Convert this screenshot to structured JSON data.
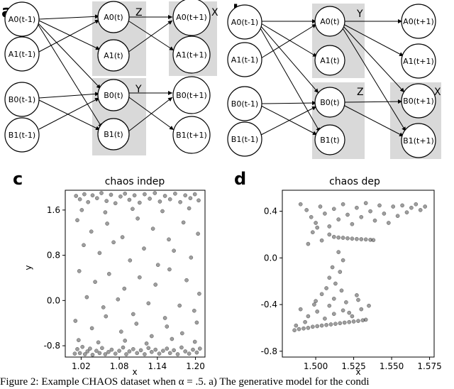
{
  "panels": {
    "a": {
      "letter": "a",
      "group_labels": [
        "Z",
        "X",
        "Y"
      ],
      "nodes": [
        "A0(t-1)",
        "A1(t-1)",
        "B0(t-1)",
        "B1(t-1)",
        "A0(t)",
        "A1(t)",
        "B0(t)",
        "B1(t)",
        "A0(t+1)",
        "A1(t+1)",
        "B0(t+1)",
        "B1(t+1)"
      ]
    },
    "b": {
      "letter": "b",
      "group_labels": [
        "Y",
        "Z",
        "X"
      ],
      "nodes": [
        "A0(t-1)",
        "A1(t-1)",
        "B0(t-1)",
        "B1(t-1)",
        "A0(t)",
        "A1(t)",
        "B0(t)",
        "B1(t)",
        "A0(t+1)",
        "A1(t+1)",
        "B0(t+1)",
        "B1(t+1)"
      ]
    },
    "c": {
      "letter": "c"
    },
    "d": {
      "letter": "d"
    }
  },
  "chart_data": [
    {
      "type": "scatter",
      "title": "chaos indep",
      "xlabel": "x",
      "ylabel": "y",
      "xlim": [
        0.995,
        1.215
      ],
      "ylim": [
        -1.0,
        1.95
      ],
      "x_ticks": [
        "1.02",
        "1.08",
        "1.14",
        "1.20"
      ],
      "y_ticks": [
        "1.6",
        "0.8",
        "0.0",
        "-0.8"
      ],
      "points": [
        [
          1.01,
          -0.94
        ],
        [
          1.014,
          -0.86
        ],
        [
          1.018,
          -0.93
        ],
        [
          1.022,
          -0.82
        ],
        [
          1.026,
          -0.95
        ],
        [
          1.03,
          -0.9
        ],
        [
          1.034,
          -0.85
        ],
        [
          1.038,
          -0.96
        ],
        [
          1.044,
          -0.89
        ],
        [
          1.049,
          -0.93
        ],
        [
          1.053,
          -0.84
        ],
        [
          1.058,
          -0.95
        ],
        [
          1.063,
          -0.91
        ],
        [
          1.068,
          -0.87
        ],
        [
          1.074,
          -0.94
        ],
        [
          1.08,
          -0.89
        ],
        [
          1.086,
          -0.83
        ],
        [
          1.091,
          -0.95
        ],
        [
          1.096,
          -0.9
        ],
        [
          1.102,
          -0.86
        ],
        [
          1.108,
          -0.93
        ],
        [
          1.114,
          -0.88
        ],
        [
          1.12,
          -0.95
        ],
        [
          1.126,
          -0.84
        ],
        [
          1.131,
          -0.91
        ],
        [
          1.137,
          -0.87
        ],
        [
          1.143,
          -0.94
        ],
        [
          1.149,
          -0.89
        ],
        [
          1.155,
          -0.85
        ],
        [
          1.16,
          -0.93
        ],
        [
          1.166,
          -0.88
        ],
        [
          1.172,
          -0.95
        ],
        [
          1.178,
          -0.83
        ],
        [
          1.184,
          -0.9
        ],
        [
          1.19,
          -0.94
        ],
        [
          1.196,
          -0.87
        ],
        [
          1.202,
          -0.92
        ],
        [
          1.207,
          -0.85
        ],
        [
          1.016,
          -0.7
        ],
        [
          1.047,
          -0.74
        ],
        [
          1.089,
          -0.71
        ],
        [
          1.123,
          -0.76
        ],
        [
          1.163,
          -0.68
        ],
        [
          1.199,
          -0.73
        ],
        [
          1.012,
          1.85
        ],
        [
          1.018,
          1.79
        ],
        [
          1.025,
          1.88
        ],
        [
          1.031,
          1.74
        ],
        [
          1.038,
          1.86
        ],
        [
          1.045,
          1.81
        ],
        [
          1.052,
          1.9
        ],
        [
          1.06,
          1.76
        ],
        [
          1.067,
          1.87
        ],
        [
          1.074,
          1.72
        ],
        [
          1.082,
          1.84
        ],
        [
          1.089,
          1.89
        ],
        [
          1.096,
          1.78
        ],
        [
          1.104,
          1.86
        ],
        [
          1.112,
          1.73
        ],
        [
          1.12,
          1.88
        ],
        [
          1.128,
          1.8
        ],
        [
          1.136,
          1.9
        ],
        [
          1.144,
          1.75
        ],
        [
          1.152,
          1.85
        ],
        [
          1.16,
          1.79
        ],
        [
          1.168,
          1.89
        ],
        [
          1.176,
          1.74
        ],
        [
          1.184,
          1.86
        ],
        [
          1.192,
          1.81
        ],
        [
          1.199,
          1.88
        ],
        [
          1.205,
          1.77
        ],
        [
          1.021,
          1.6
        ],
        [
          1.058,
          1.56
        ],
        [
          1.101,
          1.62
        ],
        [
          1.148,
          1.58
        ],
        [
          1.19,
          1.63
        ],
        [
          1.014,
          1.42
        ],
        [
          1.036,
          1.22
        ],
        [
          1.061,
          1.36
        ],
        [
          1.085,
          1.12
        ],
        [
          1.109,
          1.45
        ],
        [
          1.133,
          1.27
        ],
        [
          1.158,
          1.08
        ],
        [
          1.181,
          1.38
        ],
        [
          1.204,
          1.18
        ],
        [
          1.024,
          0.98
        ],
        [
          1.049,
          0.84
        ],
        [
          1.071,
          1.03
        ],
        [
          1.097,
          0.71
        ],
        [
          1.119,
          0.92
        ],
        [
          1.141,
          0.63
        ],
        [
          1.166,
          0.88
        ],
        [
          1.193,
          0.76
        ],
        [
          1.017,
          0.52
        ],
        [
          1.042,
          0.33
        ],
        [
          1.064,
          0.47
        ],
        [
          1.088,
          0.21
        ],
        [
          1.112,
          0.41
        ],
        [
          1.137,
          0.28
        ],
        [
          1.159,
          0.55
        ],
        [
          1.186,
          0.36
        ],
        [
          1.206,
          0.12
        ],
        [
          1.029,
          0.06
        ],
        [
          1.055,
          -0.12
        ],
        [
          1.078,
          0.02
        ],
        [
          1.102,
          -0.24
        ],
        [
          1.126,
          -0.05
        ],
        [
          1.152,
          -0.31
        ],
        [
          1.175,
          -0.09
        ],
        [
          1.198,
          -0.18
        ],
        [
          1.011,
          -0.36
        ],
        [
          1.037,
          -0.49
        ],
        [
          1.059,
          -0.28
        ],
        [
          1.083,
          -0.55
        ],
        [
          1.107,
          -0.41
        ],
        [
          1.131,
          -0.63
        ],
        [
          1.155,
          -0.46
        ],
        [
          1.179,
          -0.58
        ],
        [
          1.202,
          -0.39
        ]
      ]
    },
    {
      "type": "scatter",
      "title": "chaos dep",
      "xlabel": "x",
      "ylabel": "",
      "xlim": [
        1.478,
        1.578
      ],
      "ylim": [
        -0.85,
        0.58
      ],
      "x_ticks": [
        "1.500",
        "1.525",
        "1.550",
        "1.575"
      ],
      "y_ticks": [
        "0.4",
        "0.0",
        "-0.4",
        "-0.8"
      ],
      "points": [
        [
          1.486,
          -0.62
        ],
        [
          1.489,
          -0.61
        ],
        [
          1.492,
          -0.605
        ],
        [
          1.495,
          -0.6
        ],
        [
          1.498,
          -0.59
        ],
        [
          1.501,
          -0.585
        ],
        [
          1.504,
          -0.58
        ],
        [
          1.507,
          -0.575
        ],
        [
          1.51,
          -0.57
        ],
        [
          1.513,
          -0.565
        ],
        [
          1.516,
          -0.56
        ],
        [
          1.519,
          -0.555
        ],
        [
          1.522,
          -0.55
        ],
        [
          1.525,
          -0.545
        ],
        [
          1.528,
          -0.54
        ],
        [
          1.531,
          -0.535
        ],
        [
          1.533,
          -0.53
        ],
        [
          1.512,
          0.18
        ],
        [
          1.515,
          0.175
        ],
        [
          1.518,
          0.172
        ],
        [
          1.521,
          0.168
        ],
        [
          1.524,
          0.165
        ],
        [
          1.527,
          0.162
        ],
        [
          1.53,
          0.16
        ],
        [
          1.533,
          0.158
        ],
        [
          1.536,
          0.155
        ],
        [
          1.538,
          0.153
        ],
        [
          1.49,
          0.46
        ],
        [
          1.494,
          0.41
        ],
        [
          1.497,
          0.35
        ],
        [
          1.5,
          0.3
        ],
        [
          1.503,
          0.44
        ],
        [
          1.506,
          0.38
        ],
        [
          1.509,
          0.27
        ],
        [
          1.512,
          0.42
        ],
        [
          1.515,
          0.33
        ],
        [
          1.518,
          0.46
        ],
        [
          1.521,
          0.37
        ],
        [
          1.524,
          0.29
        ],
        [
          1.527,
          0.43
        ],
        [
          1.53,
          0.35
        ],
        [
          1.533,
          0.47
        ],
        [
          1.536,
          0.4
        ],
        [
          1.539,
          0.32
        ],
        [
          1.542,
          0.45
        ],
        [
          1.545,
          0.38
        ],
        [
          1.548,
          0.3
        ],
        [
          1.551,
          0.44
        ],
        [
          1.554,
          0.36
        ],
        [
          1.557,
          0.45
        ],
        [
          1.56,
          0.39
        ],
        [
          1.563,
          0.43
        ],
        [
          1.566,
          0.46
        ],
        [
          1.569,
          0.41
        ],
        [
          1.572,
          0.44
        ],
        [
          1.498,
          0.22
        ],
        [
          1.504,
          0.15
        ],
        [
          1.509,
          0.2
        ],
        [
          1.495,
          0.12
        ],
        [
          1.501,
          0.26
        ],
        [
          1.515,
          0.05
        ],
        [
          1.518,
          -0.02
        ],
        [
          1.511,
          -0.08
        ],
        [
          1.516,
          -0.12
        ],
        [
          1.509,
          -0.17
        ],
        [
          1.513,
          -0.22
        ],
        [
          1.507,
          -0.26
        ],
        [
          1.504,
          -0.31
        ],
        [
          1.512,
          -0.35
        ],
        [
          1.5,
          -0.37
        ],
        [
          1.509,
          -0.41
        ],
        [
          1.52,
          -0.38
        ],
        [
          1.527,
          -0.32
        ],
        [
          1.517,
          -0.28
        ],
        [
          1.49,
          -0.44
        ],
        [
          1.495,
          -0.5
        ],
        [
          1.501,
          -0.46
        ],
        [
          1.506,
          -0.52
        ],
        [
          1.512,
          -0.48
        ],
        [
          1.518,
          -0.45
        ],
        [
          1.524,
          -0.5
        ],
        [
          1.53,
          -0.44
        ],
        [
          1.535,
          -0.41
        ],
        [
          1.528,
          -0.36
        ],
        [
          1.522,
          -0.47
        ],
        [
          1.493,
          -0.55
        ],
        [
          1.499,
          -0.4
        ],
        [
          1.487,
          -0.58
        ]
      ]
    }
  ],
  "caption": "Figure 2: Example CHAOS dataset when α = .5. a) The generative model for the condi"
}
